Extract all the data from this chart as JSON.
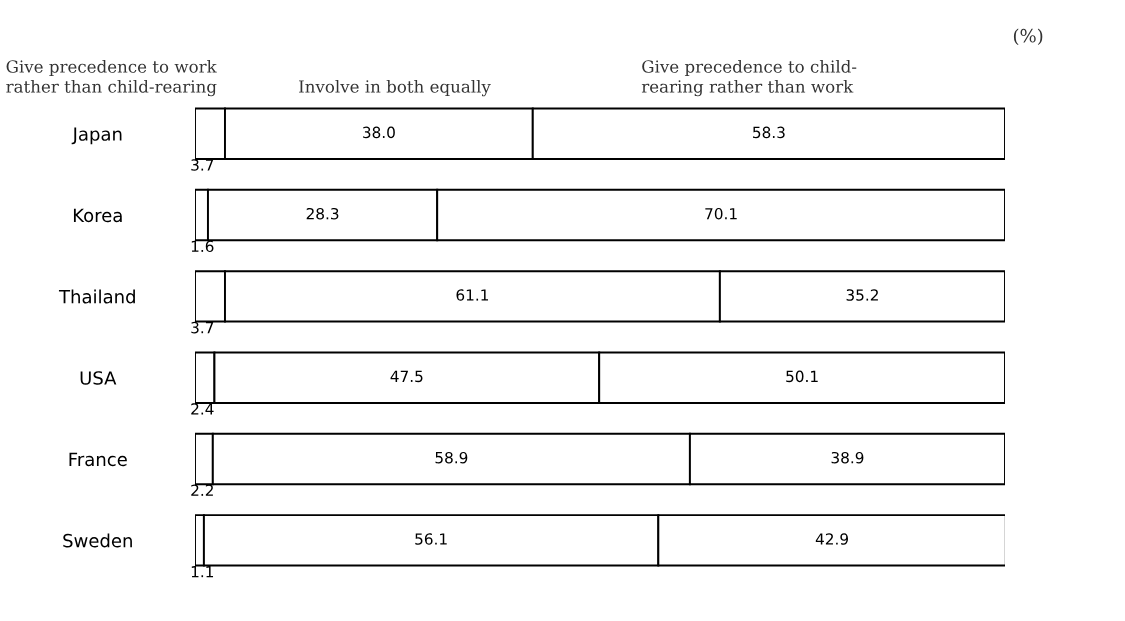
{
  "chart_data": {
    "type": "bar",
    "orientation": "horizontal",
    "stacked": true,
    "categories": [
      "Japan",
      "Korea",
      "Thailand",
      "USA",
      "France",
      "Sweden"
    ],
    "series": [
      {
        "name": "Give precedence to work\nrather than child-rearing",
        "color": "#ffffff",
        "values": [
          3.7,
          1.6,
          3.7,
          2.4,
          2.2,
          1.1
        ],
        "value_labels": [
          "3.7",
          "1.6",
          "3.7",
          "2.4",
          "2.2",
          "1.1"
        ]
      },
      {
        "name": "Involve in both equally",
        "color": "#ffffff",
        "values": [
          38.0,
          28.3,
          61.1,
          47.5,
          58.9,
          56.1
        ],
        "value_labels": [
          "38.0",
          "28.3",
          "61.1",
          "47.5",
          "58.9",
          "56.1"
        ]
      },
      {
        "name": "Give precedence to child-\nrearing rather than work",
        "color": "#ffffff",
        "values": [
          58.3,
          70.1,
          35.2,
          50.1,
          38.9,
          42.9
        ],
        "value_labels": [
          "58.3",
          "70.1",
          "35.2",
          "50.1",
          "38.9",
          "42.9"
        ]
      }
    ],
    "xlim": [
      0,
      100
    ],
    "tick_labels": "y",
    "grid": false,
    "legend": false,
    "annotations": [
      "(%)"
    ]
  }
}
